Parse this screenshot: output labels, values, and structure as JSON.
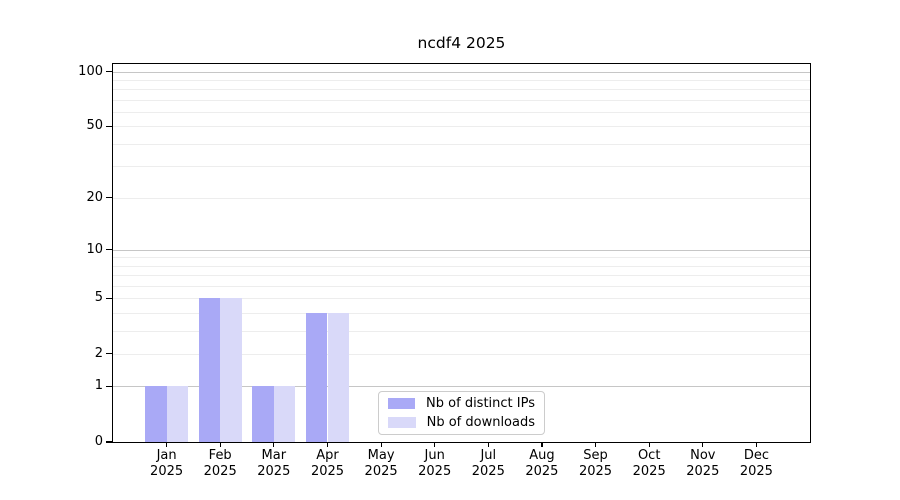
{
  "chart_data": {
    "type": "bar",
    "title": "ncdf4 2025",
    "categories": [
      "Jan",
      "Feb",
      "Mar",
      "Apr",
      "May",
      "Jun",
      "Jul",
      "Aug",
      "Sep",
      "Oct",
      "Nov",
      "Dec"
    ],
    "x_year_label": "2025",
    "series": [
      {
        "name": "Nb of distinct IPs",
        "color": "#a9a9f6",
        "values": [
          1,
          5,
          1,
          4,
          0,
          0,
          0,
          0,
          0,
          0,
          0,
          0
        ]
      },
      {
        "name": "Nb of downloads",
        "color": "#d9d9f9",
        "values": [
          1,
          5,
          1,
          4,
          0,
          0,
          0,
          0,
          0,
          0,
          0,
          0
        ]
      }
    ],
    "y_scale": "log10(value+1)",
    "y_ticks": [
      0,
      1,
      2,
      5,
      10,
      20,
      50,
      100
    ],
    "y_gridlines_major": [
      1,
      10,
      100
    ],
    "y_gridlines_minor": [
      2,
      3,
      4,
      5,
      6,
      7,
      8,
      9,
      20,
      30,
      40,
      50,
      60,
      70,
      80,
      90
    ],
    "ylim": [
      0,
      110
    ],
    "xlabel": "",
    "ylabel": "",
    "grid": true,
    "legend_position": "inside-bottom-center",
    "colors": {
      "background": "#ffffff",
      "axis": "#000000",
      "grid_major": "#c6c6c6",
      "grid_minor": "#ededed",
      "legend_border": "#cccccc",
      "text": "#000000"
    }
  }
}
